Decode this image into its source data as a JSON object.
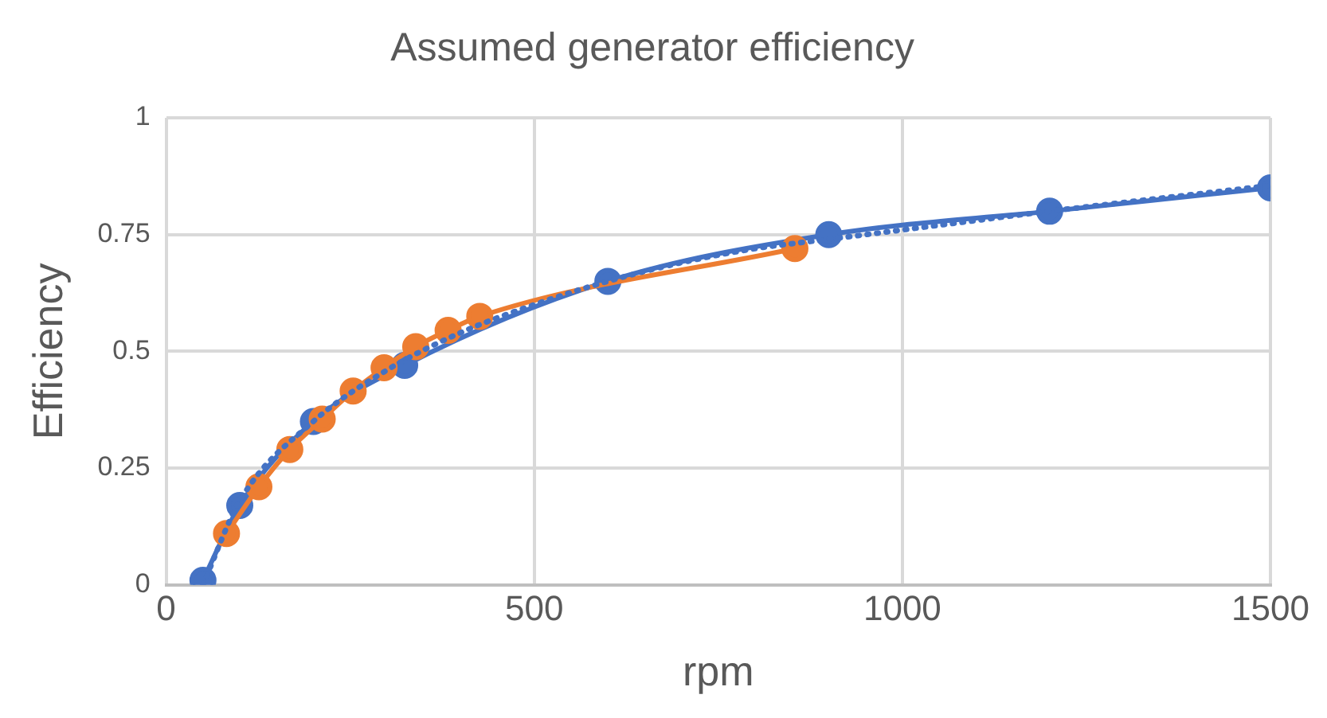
{
  "chart_data": {
    "type": "line",
    "title": "Assumed generator efficiency",
    "xlabel": "rpm",
    "ylabel": "Efficiency",
    "xlim": [
      0,
      1500
    ],
    "xticks": [
      0,
      500,
      1000,
      1500
    ],
    "ylim": [
      0,
      1
    ],
    "yticks": [
      0,
      0.25,
      0.5,
      0.75,
      1
    ],
    "grid": true,
    "legend": false,
    "marker": "circle",
    "series": [
      {
        "color": "#4472c4",
        "x": [
          50,
          100,
          200,
          324,
          600,
          900,
          1200,
          1500
        ],
        "values": [
          0.01,
          0.17,
          0.35,
          0.47,
          0.65,
          0.75,
          0.8,
          0.85
        ]
      },
      {
        "color": "#ed7d31",
        "x": [
          82,
          126,
          168,
          212,
          254,
          296,
          339,
          383,
          426,
          854
        ],
        "values": [
          0.11,
          0.21,
          0.29,
          0.355,
          0.415,
          0.465,
          0.51,
          0.545,
          0.575,
          0.72
        ]
      },
      {
        "color": "#4472c4",
        "marker": "none",
        "line_style": "dotted",
        "x": [
          50,
          100,
          200,
          300,
          400,
          500,
          600,
          700,
          800,
          900,
          1000,
          1200,
          1500
        ],
        "values": [
          0,
          0.18,
          0.35,
          0.46,
          0.54,
          0.6,
          0.65,
          0.69,
          0.72,
          0.74,
          0.76,
          0.8,
          0.855
        ]
      }
    ]
  }
}
